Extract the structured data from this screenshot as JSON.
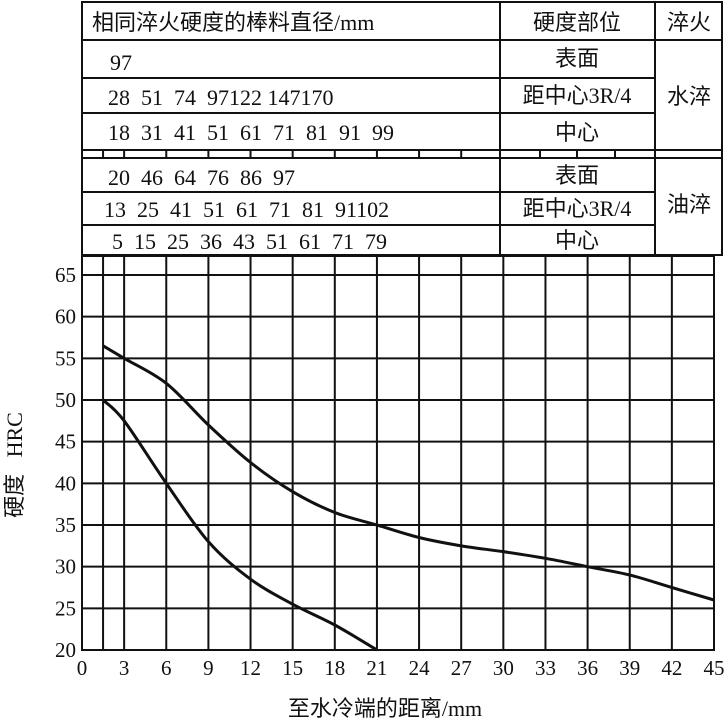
{
  "table": {
    "header_diameter": "相同淬火硬度的棒料直径/mm",
    "header_location": "硬度部位",
    "header_quench": "淬火",
    "water": {
      "label": "水淬",
      "rows": [
        {
          "values": "97",
          "location": "表面"
        },
        {
          "values": "28  51  74  97122 147170",
          "location": "距中心3R/4"
        },
        {
          "values": "18  31  41  51  61  71  81  91  99",
          "location": "中心"
        }
      ]
    },
    "oil": {
      "label": "油淬",
      "rows": [
        {
          "values": "20  46  64  76  86  97",
          "location": "表面"
        },
        {
          "values": "13  25  41  51  61  71  81  91102",
          "location": "距中心3R/4"
        },
        {
          "values": "5  15  25  36  43  51  61  71  79",
          "location": "中心"
        }
      ]
    }
  },
  "chart_data": {
    "type": "line",
    "xlabel": "至水冷端的距离/mm",
    "ylabel": "硬度   HRC",
    "xlim": [
      0,
      45
    ],
    "ylim": [
      20,
      65
    ],
    "grid": true,
    "xticks": [
      "0",
      "3",
      "6",
      "9",
      "12",
      "15",
      "18",
      "21",
      "24",
      "27",
      "30",
      "33",
      "36",
      "39",
      "42",
      "45"
    ],
    "yticks": [
      "20",
      "25",
      "30",
      "35",
      "40",
      "45",
      "50",
      "55",
      "60",
      "65"
    ],
    "series": [
      {
        "x": [
          1.5,
          3,
          6,
          9,
          12,
          15,
          18,
          21,
          24,
          27,
          30,
          33,
          36,
          39,
          42,
          45
        ],
        "y": [
          56.5,
          55,
          52,
          47,
          42.5,
          39,
          36.5,
          35,
          33.5,
          32.5,
          31.8,
          31,
          30,
          29,
          27.5,
          26
        ]
      },
      {
        "x": [
          1.5,
          3,
          6,
          9,
          12,
          15,
          18,
          21
        ],
        "y": [
          50,
          47.5,
          40,
          33,
          28.5,
          25.5,
          23,
          20
        ]
      }
    ]
  }
}
